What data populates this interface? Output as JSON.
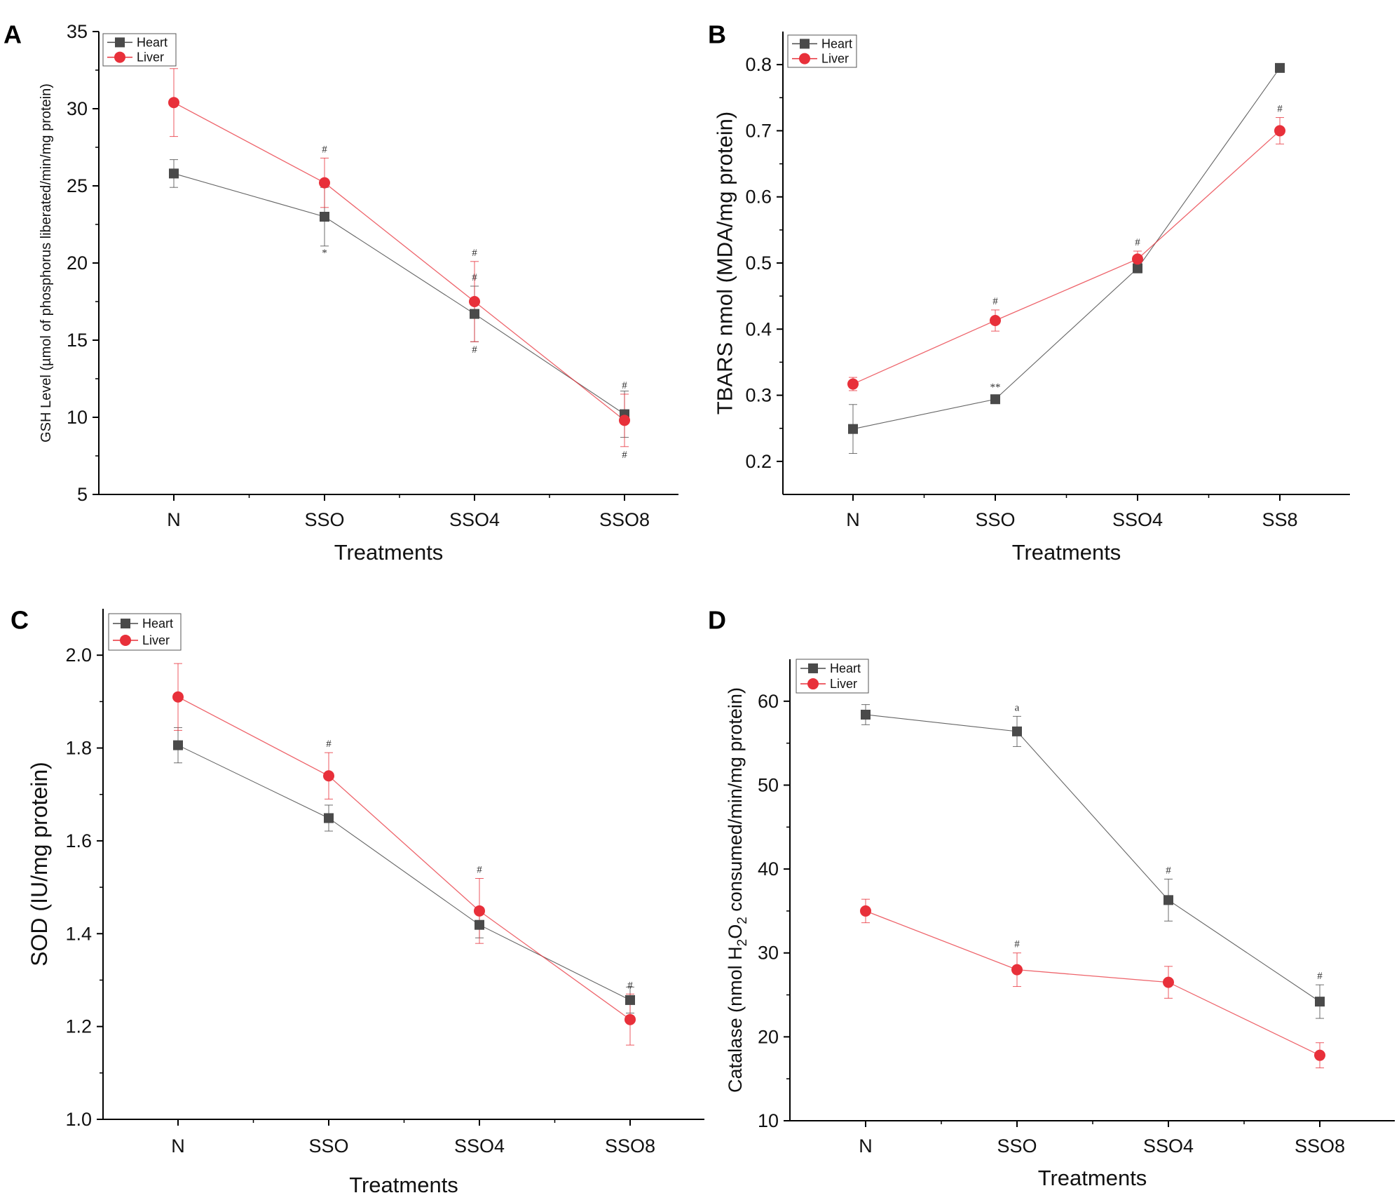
{
  "chart_data": [
    {
      "panel": "A",
      "type": "line",
      "xlabel": "Treatments",
      "ylabel": "GSH Level (µmol of phosphorus liberated/min/mg protein)",
      "categories": [
        "N",
        "SSO",
        "SSO4",
        "SSO8"
      ],
      "ylim": [
        5,
        35
      ],
      "yticks": [
        5,
        10,
        15,
        20,
        25,
        30,
        35
      ],
      "ytick_labels": [
        "5",
        "10",
        "15",
        "20",
        "25",
        "30",
        "35"
      ],
      "series": [
        {
          "name": "Heart",
          "color": "#4a4a4a",
          "marker": "square",
          "values": [
            25.8,
            23.0,
            16.7,
            10.2
          ],
          "errors": [
            0.9,
            1.9,
            1.8,
            1.5
          ],
          "annotations": [
            "",
            "*",
            "#",
            ""
          ]
        },
        {
          "name": "Liver",
          "color": "#e8303a",
          "marker": "circle",
          "values": [
            30.4,
            25.2,
            17.5,
            9.8
          ],
          "errors": [
            2.2,
            1.6,
            2.6,
            1.7
          ],
          "annotations": [
            "",
            "#",
            "#",
            "#"
          ]
        }
      ],
      "lower_annotations": [
        "",
        "",
        "#",
        "#"
      ]
    },
    {
      "panel": "B",
      "type": "line",
      "xlabel": "Treatments",
      "ylabel": "TBARS nmol (MDA/mg protein)",
      "categories": [
        "N",
        "SSO",
        "SSO4",
        "SS8"
      ],
      "ylim": [
        0.15,
        0.85
      ],
      "yticks": [
        0.2,
        0.3,
        0.4,
        0.5,
        0.6,
        0.7,
        0.8
      ],
      "ytick_labels": [
        "0.2",
        "0.3",
        "0.4",
        "0.5",
        "0.6",
        "0.7",
        "0.8"
      ],
      "series": [
        {
          "name": "Heart",
          "color": "#4a4a4a",
          "marker": "square",
          "values": [
            0.249,
            0.294,
            0.492,
            0.795
          ],
          "errors": [
            0.037,
            0.005,
            0.007,
            0.005
          ],
          "annotations": [
            "",
            "**",
            "",
            ""
          ]
        },
        {
          "name": "Liver",
          "color": "#e8303a",
          "marker": "circle",
          "values": [
            0.317,
            0.413,
            0.506,
            0.7
          ],
          "errors": [
            0.01,
            0.016,
            0.012,
            0.02
          ],
          "annotations": [
            "",
            "#",
            "#",
            "#"
          ]
        }
      ]
    },
    {
      "panel": "C",
      "type": "line",
      "xlabel": "Treatments",
      "ylabel": "SOD (IU/mg protein)",
      "categories": [
        "N",
        "SSO",
        "SSO4",
        "SSO8"
      ],
      "ylim": [
        1.0,
        2.1
      ],
      "yticks": [
        1.0,
        1.2,
        1.4,
        1.6,
        1.8,
        2.0
      ],
      "ytick_labels": [
        "1.0",
        "1.2",
        "1.4",
        "1.6",
        "1.8",
        "2.0"
      ],
      "series": [
        {
          "name": "Heart",
          "color": "#4a4a4a",
          "marker": "square",
          "values": [
            1.806,
            1.649,
            1.419,
            1.257
          ],
          "errors": [
            0.038,
            0.028,
            0.028,
            0.028
          ],
          "annotations": [
            "",
            "",
            "",
            ""
          ]
        },
        {
          "name": "Liver",
          "color": "#e8303a",
          "marker": "circle",
          "values": [
            1.91,
            1.74,
            1.449,
            1.215
          ],
          "errors": [
            0.072,
            0.05,
            0.07,
            0.055
          ],
          "annotations": [
            "",
            "#",
            "#",
            "#"
          ]
        }
      ]
    },
    {
      "panel": "D",
      "type": "line",
      "xlabel": "Treatments",
      "ylabel_parts": [
        "Catalase (nmol H",
        "2",
        "O",
        "2",
        " consumed/min/mg protein)"
      ],
      "categories": [
        "N",
        "SSO",
        "SSO4",
        "SSO8"
      ],
      "ylim": [
        10,
        65
      ],
      "yticks": [
        10,
        20,
        30,
        40,
        50,
        60
      ],
      "ytick_labels": [
        "10",
        "20",
        "30",
        "40",
        "50",
        "60"
      ],
      "series": [
        {
          "name": "Heart",
          "color": "#4a4a4a",
          "marker": "square",
          "values": [
            58.4,
            56.4,
            36.3,
            24.2
          ],
          "errors": [
            1.2,
            1.8,
            2.5,
            2.0
          ],
          "annotations": [
            "",
            "a",
            "#",
            "#"
          ]
        },
        {
          "name": "Liver",
          "color": "#e8303a",
          "marker": "circle",
          "values": [
            35.0,
            28.0,
            26.5,
            17.8
          ],
          "errors": [
            1.4,
            2.0,
            1.9,
            1.5
          ],
          "annotations": [
            "",
            "#",
            "",
            ""
          ]
        }
      ]
    }
  ]
}
